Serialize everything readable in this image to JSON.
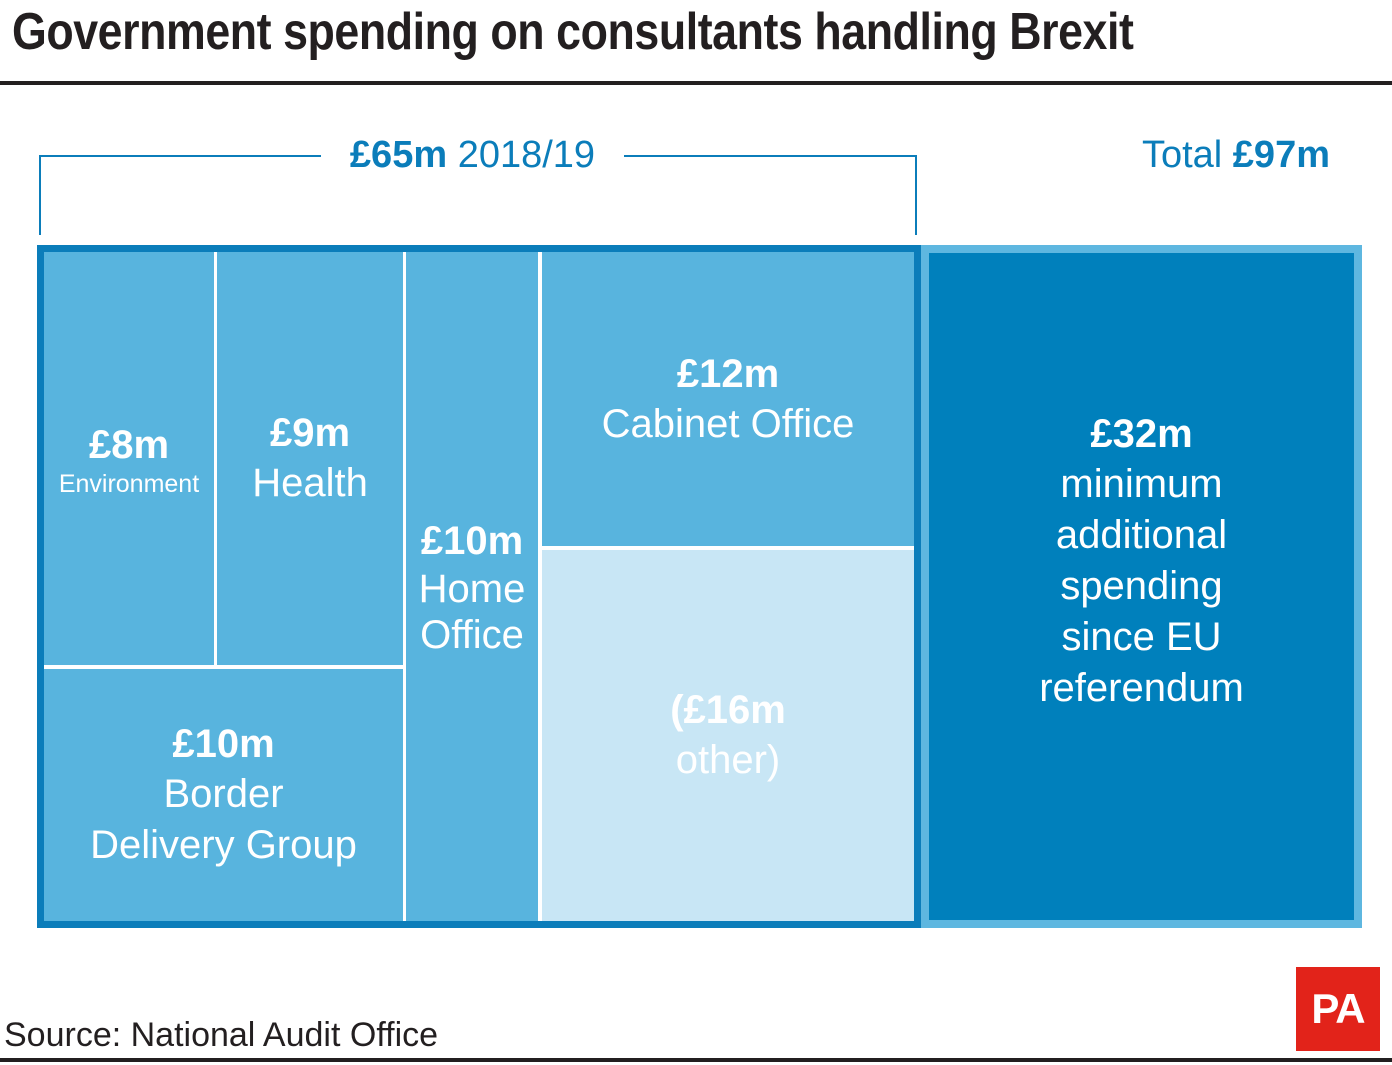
{
  "title": "Government spending on consultants handling Brexit",
  "bracket": {
    "amount": "£65m",
    "period": "2018/19"
  },
  "total": {
    "prefix": "Total",
    "amount": "£97m"
  },
  "source": "Source: National Audit Office",
  "logo": "PA",
  "colors": {
    "accent": "#0b7dba",
    "department": "#58b4de",
    "other": "#c8e6f5",
    "additional": "#0080bc",
    "logo": "#e2231a"
  },
  "chart_data": {
    "type": "treemap",
    "title": "Government spending on consultants handling Brexit",
    "units": "£m",
    "groups": [
      {
        "name": "2018/19",
        "total": 65,
        "items": [
          {
            "label": "Environment",
            "value": 8,
            "value_text": "£8m"
          },
          {
            "label": "Health",
            "value": 9,
            "value_text": "£9m"
          },
          {
            "label": "Border Delivery Group",
            "value": 10,
            "value_text": "£10m",
            "label_lines": [
              "Border",
              "Delivery Group"
            ]
          },
          {
            "label": "Home Office",
            "value": 10,
            "value_text": "£10m",
            "label_lines": [
              "Home",
              "Office"
            ]
          },
          {
            "label": "Cabinet Office",
            "value": 12,
            "value_text": "£12m"
          },
          {
            "label": "other",
            "value": 16,
            "value_text": "(£16m",
            "label_text": "other)"
          }
        ]
      },
      {
        "name": "minimum additional spending since EU referendum",
        "total": 32,
        "items": [
          {
            "label": "minimum additional spending since EU referendum",
            "value": 32,
            "value_text": "£32m",
            "label_lines": [
              "minimum",
              "additional",
              "spending",
              "since EU",
              "referendum"
            ]
          }
        ]
      }
    ],
    "grand_total": 97
  }
}
